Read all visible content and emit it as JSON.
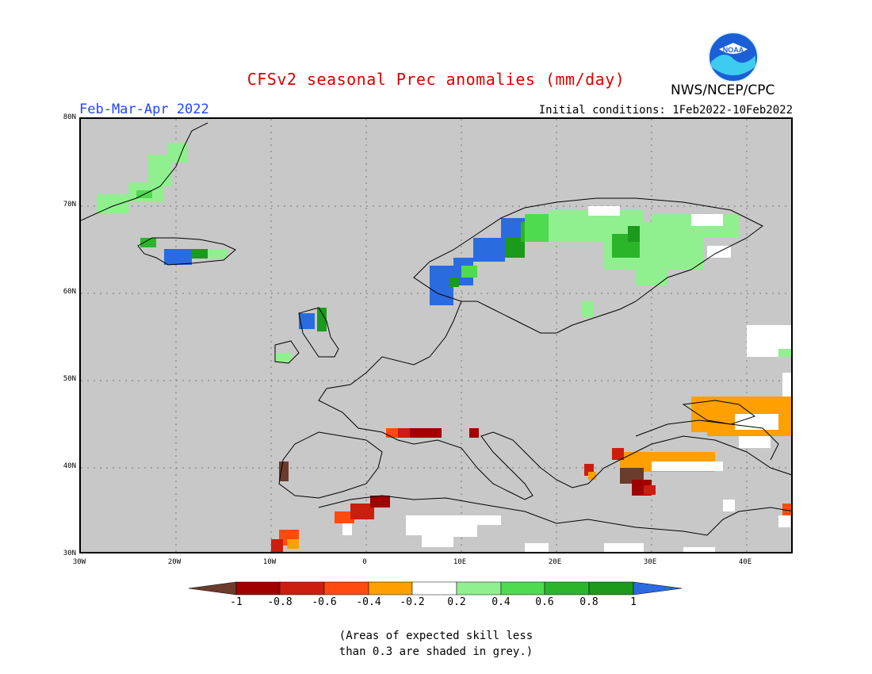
{
  "header": {
    "title": "CFSv2 seasonal Prec anomalies (mm/day)",
    "period": "Feb-Mar-Apr 2022",
    "initial_conditions": "Initial conditions: 1Feb2022-10Feb2022",
    "organization": "NWS/NCEP/CPC",
    "logo_text": "NOAA"
  },
  "map": {
    "lat_labels": [
      "80N",
      "70N",
      "60N",
      "50N",
      "40N",
      "30N"
    ],
    "lon_labels": [
      "30W",
      "20W",
      "10W",
      "0",
      "10E",
      "20E",
      "30E",
      "40E"
    ],
    "grey_meaning": "skill < 0.3"
  },
  "colorbar": {
    "labels": [
      "-1",
      "-0.8",
      "-0.6",
      "-0.4",
      "-0.2",
      "0.2",
      "0.4",
      "0.6",
      "0.8",
      "1"
    ],
    "colors": [
      "#6b3b2c",
      "#a00000",
      "#cc1e0e",
      "#ff4b10",
      "#ff9f00",
      "#ffffff",
      "#90f08f",
      "#4fdb4f",
      "#2bb52b",
      "#1b9a1b",
      "#2a6cdf"
    ]
  },
  "footnote": {
    "line1": "(Areas of expected skill less",
    "line2": "than 0.3 are shaded in grey.)"
  }
}
